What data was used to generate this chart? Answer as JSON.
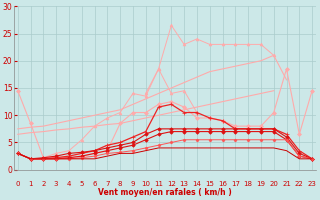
{
  "x": [
    0,
    1,
    2,
    3,
    4,
    5,
    6,
    7,
    8,
    9,
    10,
    11,
    12,
    13,
    14,
    15,
    16,
    17,
    18,
    19,
    20,
    21,
    22,
    23
  ],
  "series": [
    {
      "name": "line1_pink_diamond",
      "values": [
        14.5,
        8.5,
        2.2,
        2.2,
        2.2,
        2.5,
        3.0,
        3.5,
        8.5,
        10.5,
        10.5,
        12.0,
        12.5,
        11.5,
        9.5,
        9.5,
        9.0,
        8.0,
        8.0,
        8.0,
        10.5,
        18.5,
        6.5,
        14.5
      ],
      "color": "#ffaaaa",
      "marker": "D",
      "markersize": 2.0,
      "linewidth": 0.8
    },
    {
      "name": "line2_pink_triangle_high",
      "values": [
        null,
        null,
        null,
        null,
        null,
        null,
        null,
        null,
        null,
        null,
        14.0,
        18.5,
        26.5,
        23.0,
        24.0,
        23.0,
        23.0,
        23.0,
        23.0,
        23.0,
        21.0,
        null,
        null,
        null
      ],
      "color": "#ffaaaa",
      "marker": "^",
      "markersize": 2.0,
      "linewidth": 0.7
    },
    {
      "name": "line3_pink_triangle_mid",
      "values": [
        null,
        null,
        2.2,
        3.0,
        3.5,
        5.5,
        8.0,
        9.5,
        10.5,
        14.0,
        13.5,
        18.5,
        14.0,
        14.5,
        10.5,
        null,
        null,
        null,
        null,
        null,
        null,
        null,
        null,
        null
      ],
      "color": "#ffaaaa",
      "marker": "^",
      "markersize": 2.0,
      "linewidth": 0.7
    },
    {
      "name": "line4_pink_linear_high",
      "values": [
        7.5,
        7.8,
        8.0,
        8.5,
        9.0,
        9.5,
        10.0,
        10.5,
        11.0,
        12.0,
        13.0,
        14.0,
        15.0,
        16.0,
        17.0,
        18.0,
        18.5,
        19.0,
        19.5,
        20.0,
        21.0,
        16.5,
        null,
        null
      ],
      "color": "#ffaaaa",
      "marker": null,
      "markersize": 0,
      "linewidth": 0.8
    },
    {
      "name": "line5_pink_linear_low",
      "values": [
        6.5,
        6.8,
        7.0,
        7.3,
        7.5,
        7.8,
        8.0,
        8.3,
        8.5,
        9.0,
        9.5,
        10.0,
        10.5,
        11.0,
        11.5,
        12.0,
        12.5,
        13.0,
        13.5,
        14.0,
        14.5,
        null,
        null,
        null
      ],
      "color": "#ffaaaa",
      "marker": null,
      "markersize": 0,
      "linewidth": 0.8
    },
    {
      "name": "line6_red_with_markers_peak",
      "values": [
        3.0,
        2.0,
        2.0,
        2.2,
        2.5,
        3.0,
        3.5,
        4.5,
        5.0,
        6.0,
        7.0,
        11.5,
        12.0,
        10.5,
        10.5,
        9.5,
        9.0,
        7.5,
        7.5,
        7.5,
        7.5,
        6.5,
        3.5,
        2.0
      ],
      "color": "#ee2222",
      "marker": "+",
      "markersize": 3.0,
      "linewidth": 0.9
    },
    {
      "name": "line7_red_flat_high",
      "values": [
        3.0,
        2.0,
        2.2,
        2.5,
        3.0,
        3.2,
        3.5,
        4.0,
        4.5,
        5.0,
        6.5,
        7.5,
        7.5,
        7.5,
        7.5,
        7.5,
        7.5,
        7.5,
        7.5,
        7.5,
        7.5,
        6.0,
        3.0,
        2.0
      ],
      "color": "#dd1111",
      "marker": "D",
      "markersize": 1.8,
      "linewidth": 0.8
    },
    {
      "name": "line8_red_flat_mid",
      "values": [
        3.0,
        2.0,
        2.0,
        2.0,
        2.2,
        2.5,
        3.0,
        3.5,
        4.0,
        4.5,
        5.5,
        6.5,
        7.0,
        7.0,
        7.0,
        7.0,
        7.0,
        7.0,
        7.0,
        7.0,
        7.0,
        5.5,
        2.5,
        2.0
      ],
      "color": "#dd1111",
      "marker": "D",
      "markersize": 1.8,
      "linewidth": 0.8
    },
    {
      "name": "line9_red_low",
      "values": [
        3.0,
        2.0,
        2.0,
        2.0,
        2.0,
        2.2,
        2.5,
        3.0,
        3.2,
        3.5,
        4.0,
        4.5,
        5.0,
        5.5,
        5.5,
        5.5,
        5.5,
        5.5,
        5.5,
        5.5,
        5.5,
        5.5,
        2.5,
        2.0
      ],
      "color": "#ff5555",
      "marker": "D",
      "markersize": 1.5,
      "linewidth": 0.7
    },
    {
      "name": "line10_red_baseline",
      "values": [
        3.0,
        2.0,
        2.0,
        2.0,
        2.0,
        2.0,
        2.0,
        2.5,
        3.0,
        3.0,
        3.5,
        4.0,
        4.0,
        4.0,
        4.0,
        4.0,
        4.0,
        4.0,
        4.0,
        4.0,
        4.0,
        3.5,
        2.0,
        2.0
      ],
      "color": "#cc0000",
      "marker": null,
      "markersize": 0,
      "linewidth": 0.7
    }
  ],
  "xlim": [
    -0.3,
    23.3
  ],
  "ylim": [
    0,
    30
  ],
  "yticks": [
    0,
    5,
    10,
    15,
    20,
    25,
    30
  ],
  "xticks": [
    0,
    1,
    2,
    3,
    4,
    5,
    6,
    7,
    8,
    9,
    10,
    11,
    12,
    13,
    14,
    15,
    16,
    17,
    18,
    19,
    20,
    21,
    22,
    23
  ],
  "xlabel": "Vent moyen/en rafales ( km/h )",
  "background_color": "#cce8e8",
  "grid_color": "#aacccc",
  "tick_color": "#cc0000",
  "label_color": "#cc0000",
  "arrow_color": "#cc0000",
  "spine_color": "#888888"
}
